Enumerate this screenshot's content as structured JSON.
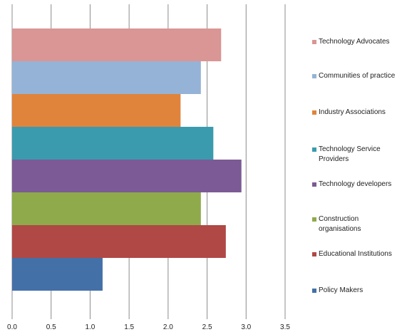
{
  "chart_data": {
    "type": "bar",
    "orientation": "horizontal",
    "title": "",
    "xlabel": "",
    "ylabel": "",
    "xlim": [
      0,
      3.5
    ],
    "x_ticks": [
      "0.0",
      "0.5",
      "1.0",
      "1.5",
      "2.0",
      "2.5",
      "3.0",
      "3.5"
    ],
    "grid": true,
    "legend_position": "right",
    "series": [
      {
        "name": "Technology Advocates",
        "value": 2.68,
        "color": "#D99694"
      },
      {
        "name": "Communities of practice",
        "value": 2.42,
        "color": "#95B3D7"
      },
      {
        "name": "Industry Associations",
        "value": 2.16,
        "color": "#E0843C"
      },
      {
        "name": "Technology Service Providers",
        "value": 2.58,
        "color": "#3B9BAE"
      },
      {
        "name": "Technology developers",
        "value": 2.94,
        "color": "#7B5A95"
      },
      {
        "name": "Construction organisations",
        "value": 2.42,
        "color": "#8EAA4B"
      },
      {
        "name": "Educational Institutions",
        "value": 2.74,
        "color": "#B04845"
      },
      {
        "name": "Policy Makers",
        "value": 1.16,
        "color": "#4470A8"
      }
    ]
  }
}
